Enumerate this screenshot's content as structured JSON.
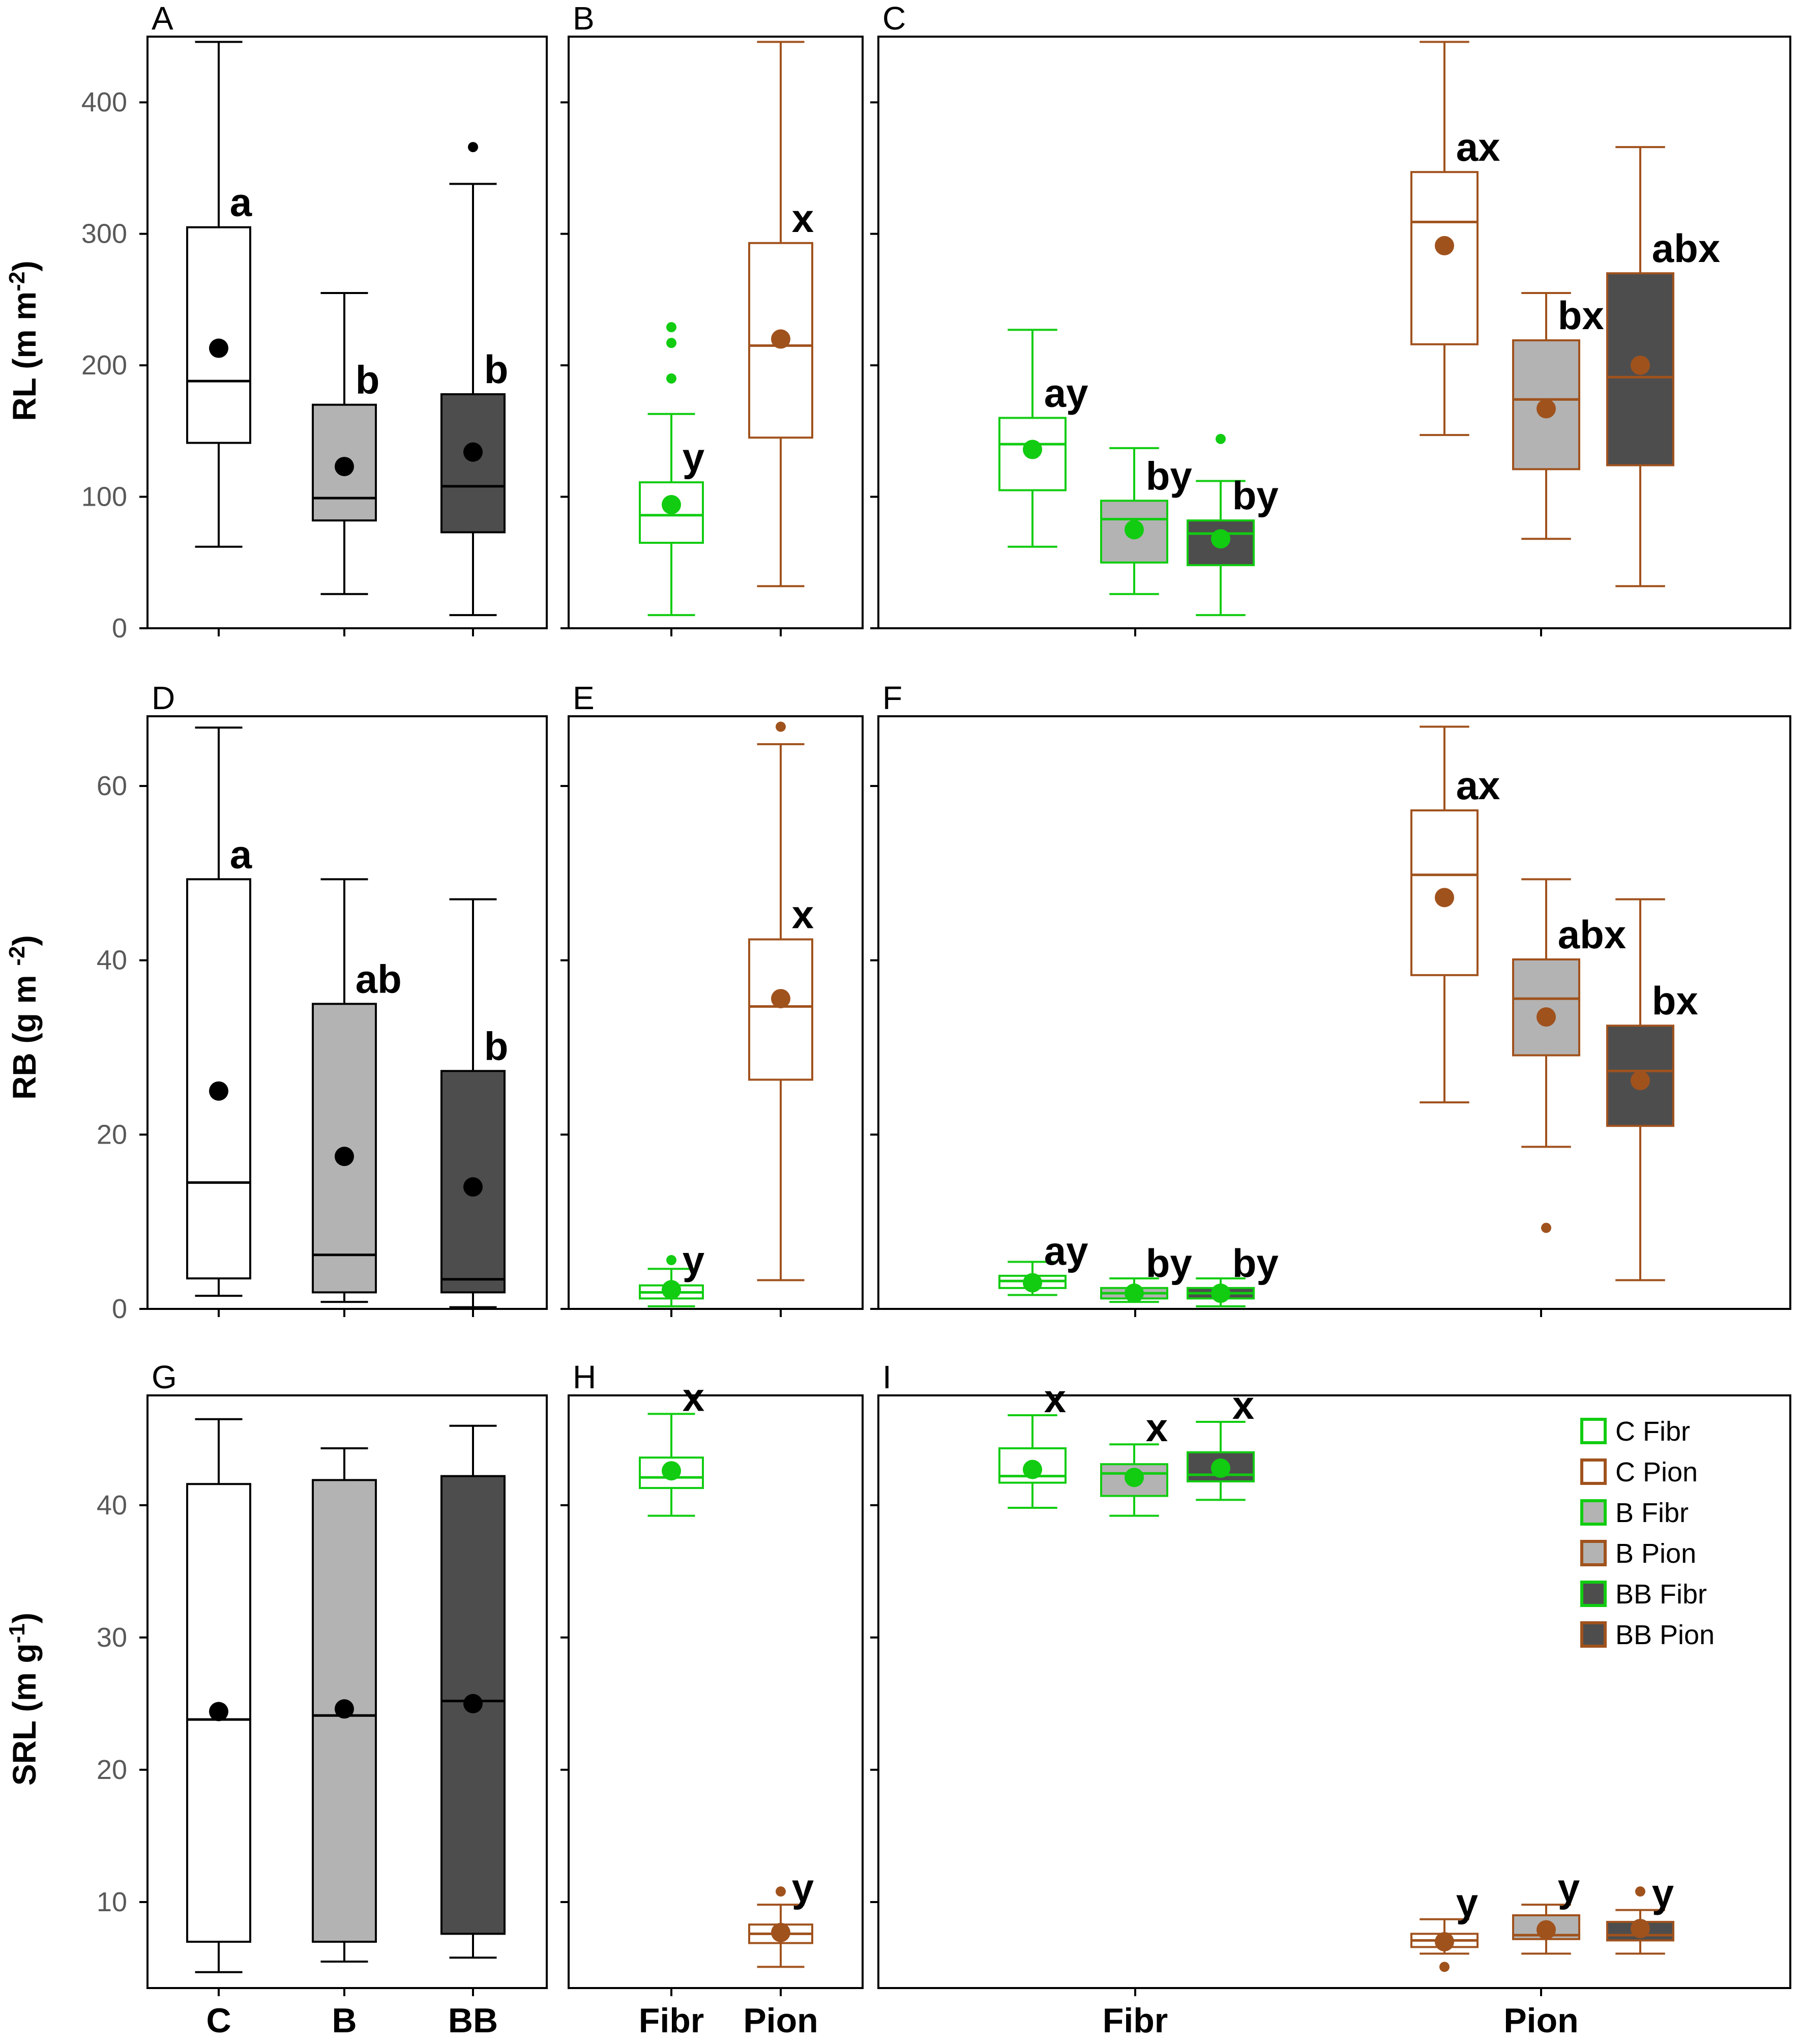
{
  "colors": {
    "fibr": "#11cc11",
    "pion": "#a0521d",
    "C": "#ffffff",
    "B": "#b3b3b3",
    "BB": "#4d4d4d",
    "black": "#000000",
    "axis": "#000000"
  },
  "chart_data": [
    {
      "id": "A",
      "label": "A",
      "type": "box",
      "ylabel": "RL (m m-2)",
      "ylim": [
        0,
        450
      ],
      "yticks": [
        "0",
        "100",
        "200",
        "300",
        "400"
      ],
      "ytick_values": [
        0,
        100,
        200,
        300,
        400
      ],
      "categories": [
        "C",
        "B",
        "BB"
      ],
      "boxes": [
        {
          "group": "C",
          "root": "all",
          "fill": "C",
          "min": 62,
          "q1": 141,
          "median": 188,
          "q3": 305,
          "max": 446,
          "mean": 213,
          "outliers": [],
          "letter": "a"
        },
        {
          "group": "B",
          "root": "all",
          "fill": "B",
          "min": 26,
          "q1": 82,
          "median": 99,
          "q3": 170,
          "max": 255,
          "mean": 123,
          "outliers": [],
          "letter": "b"
        },
        {
          "group": "BB",
          "root": "all",
          "fill": "BB",
          "min": 10,
          "q1": 73,
          "median": 108,
          "q3": 178,
          "max": 338,
          "mean": 134,
          "outliers": [
            366
          ],
          "letter": "b"
        }
      ]
    },
    {
      "id": "B",
      "label": "B",
      "type": "box",
      "ylim": [
        0,
        450
      ],
      "ytick_values": [
        0,
        100,
        200,
        300,
        400
      ],
      "categories": [
        "Fibr",
        "Pion"
      ],
      "boxes": [
        {
          "group": "Fibr",
          "root": "fibr",
          "fill": "C",
          "min": 10,
          "q1": 65,
          "median": 86,
          "q3": 111,
          "max": 163,
          "mean": 94,
          "outliers": [
            190,
            217,
            229
          ],
          "letter": "y"
        },
        {
          "group": "Pion",
          "root": "pion",
          "fill": "C",
          "min": 32,
          "q1": 145,
          "median": 215,
          "q3": 293,
          "max": 446,
          "mean": 220,
          "outliers": [],
          "letter": "x"
        }
      ]
    },
    {
      "id": "C",
      "label": "C",
      "type": "box",
      "ylim": [
        0,
        450
      ],
      "ytick_values": [
        0,
        100,
        200,
        300,
        400
      ],
      "categories": [
        "Fibr",
        "Pion"
      ],
      "boxes": [
        {
          "group": "C Fibr",
          "root": "fibr",
          "fill": "C",
          "min": 62,
          "q1": 105,
          "median": 140,
          "q3": 160,
          "max": 227,
          "mean": 136,
          "outliers": [],
          "letter": "ay"
        },
        {
          "group": "B Fibr",
          "root": "fibr",
          "fill": "B",
          "min": 26,
          "q1": 50,
          "median": 83,
          "q3": 97,
          "max": 137,
          "mean": 75,
          "outliers": [],
          "letter": "by"
        },
        {
          "group": "BB Fibr",
          "root": "fibr",
          "fill": "BB",
          "min": 10,
          "q1": 48,
          "median": 72,
          "q3": 82,
          "max": 112,
          "mean": 68,
          "outliers": [
            144
          ],
          "letter": "by"
        },
        {
          "group": "C Pion",
          "root": "pion",
          "fill": "C",
          "min": 147,
          "q1": 216,
          "median": 309,
          "q3": 347,
          "max": 446,
          "mean": 291,
          "outliers": [],
          "letter": "ax"
        },
        {
          "group": "B Pion",
          "root": "pion",
          "fill": "B",
          "min": 68,
          "q1": 121,
          "median": 174,
          "q3": 219,
          "max": 255,
          "mean": 167,
          "outliers": [],
          "letter": "bx"
        },
        {
          "group": "BB Pion",
          "root": "pion",
          "fill": "BB",
          "min": 32,
          "q1": 124,
          "median": 191,
          "q3": 270,
          "max": 366,
          "mean": 200,
          "outliers": [],
          "letter": "abx"
        }
      ]
    },
    {
      "id": "D",
      "label": "D",
      "type": "box",
      "ylabel": "RB (g m-2)",
      "ylim": [
        0,
        68
      ],
      "yticks": [
        "0",
        "20",
        "40",
        "60"
      ],
      "ytick_values": [
        0,
        20,
        40,
        60
      ],
      "categories": [
        "C",
        "B",
        "BB"
      ],
      "boxes": [
        {
          "group": "C",
          "root": "all",
          "fill": "C",
          "min": 1.5,
          "q1": 3.5,
          "median": 14.5,
          "q3": 49.3,
          "max": 66.7,
          "mean": 25,
          "outliers": [],
          "letter": "a"
        },
        {
          "group": "B",
          "root": "all",
          "fill": "B",
          "min": 0.8,
          "q1": 1.9,
          "median": 6.2,
          "q3": 35,
          "max": 49.3,
          "mean": 17.5,
          "outliers": [],
          "letter": "ab"
        },
        {
          "group": "BB",
          "root": "all",
          "fill": "BB",
          "min": 0.2,
          "q1": 1.9,
          "median": 3.4,
          "q3": 27.3,
          "max": 47,
          "mean": 14,
          "outliers": [],
          "letter": "b"
        }
      ]
    },
    {
      "id": "E",
      "label": "E",
      "type": "box",
      "ylim": [
        0,
        68
      ],
      "ytick_values": [
        0,
        20,
        40,
        60
      ],
      "categories": [
        "Fibr",
        "Pion"
      ],
      "boxes": [
        {
          "group": "Fibr",
          "root": "fibr",
          "fill": "C",
          "min": 0.3,
          "q1": 1.2,
          "median": 1.9,
          "q3": 2.7,
          "max": 4.6,
          "mean": 2.2,
          "outliers": [
            5.6
          ],
          "letter": "y"
        },
        {
          "group": "Pion",
          "root": "pion",
          "fill": "C",
          "min": 3.3,
          "q1": 26.3,
          "median": 34.7,
          "q3": 42.4,
          "max": 64.8,
          "mean": 35.6,
          "outliers": [
            66.8
          ],
          "letter": "x"
        }
      ]
    },
    {
      "id": "F",
      "label": "F",
      "type": "box",
      "ylim": [
        0,
        68
      ],
      "ytick_values": [
        0,
        20,
        40,
        60
      ],
      "categories": [
        "Fibr",
        "Pion"
      ],
      "boxes": [
        {
          "group": "C Fibr",
          "root": "fibr",
          "fill": "C",
          "min": 1.6,
          "q1": 2.4,
          "median": 3.2,
          "q3": 3.8,
          "max": 5.4,
          "mean": 3.0,
          "outliers": [],
          "letter": "ay"
        },
        {
          "group": "B Fibr",
          "root": "fibr",
          "fill": "B",
          "min": 0.8,
          "q1": 1.2,
          "median": 1.8,
          "q3": 2.4,
          "max": 3.5,
          "mean": 1.8,
          "outliers": [],
          "letter": "by"
        },
        {
          "group": "BB Fibr",
          "root": "fibr",
          "fill": "BB",
          "min": 0.3,
          "q1": 1.2,
          "median": 1.8,
          "q3": 2.4,
          "max": 3.5,
          "mean": 1.8,
          "outliers": [],
          "letter": "by"
        },
        {
          "group": "C Pion",
          "root": "pion",
          "fill": "C",
          "min": 23.7,
          "q1": 38.3,
          "median": 49.8,
          "q3": 57.2,
          "max": 66.8,
          "mean": 47.2,
          "outliers": [],
          "letter": "ax"
        },
        {
          "group": "B Pion",
          "root": "pion",
          "fill": "B",
          "min": 18.6,
          "q1": 29.1,
          "median": 35.6,
          "q3": 40.1,
          "max": 49.3,
          "mean": 33.5,
          "outliers": [
            9.3
          ],
          "letter": "abx"
        },
        {
          "group": "BB Pion",
          "root": "pion",
          "fill": "BB",
          "min": 3.3,
          "q1": 21,
          "median": 27.3,
          "q3": 32.5,
          "max": 47,
          "mean": 26.2,
          "outliers": [],
          "letter": "bx"
        }
      ]
    },
    {
      "id": "G",
      "label": "G",
      "type": "box",
      "ylabel": "SRL (m g-1)",
      "ylim": [
        3.5,
        48.3
      ],
      "yticks": [
        "10",
        "20",
        "30",
        "40"
      ],
      "ytick_values": [
        10,
        20,
        30,
        40
      ],
      "categories": [
        "C",
        "B",
        "BB"
      ],
      "boxes": [
        {
          "group": "C",
          "root": "all",
          "fill": "C",
          "min": 4.7,
          "q1": 7.0,
          "median": 23.8,
          "q3": 41.6,
          "max": 46.5,
          "mean": 24.4,
          "outliers": [],
          "letter": ""
        },
        {
          "group": "B",
          "root": "all",
          "fill": "B",
          "min": 5.5,
          "q1": 7.0,
          "median": 24.1,
          "q3": 41.9,
          "max": 44.3,
          "mean": 24.6,
          "outliers": [],
          "letter": ""
        },
        {
          "group": "BB",
          "root": "all",
          "fill": "BB",
          "min": 5.8,
          "q1": 7.6,
          "median": 25.2,
          "q3": 42.2,
          "max": 46,
          "mean": 25,
          "outliers": [],
          "letter": ""
        }
      ]
    },
    {
      "id": "H",
      "label": "H",
      "type": "box",
      "ylim": [
        3.5,
        48.3
      ],
      "ytick_values": [
        10,
        20,
        30,
        40
      ],
      "categories": [
        "Fibr",
        "Pion"
      ],
      "boxes": [
        {
          "group": "Fibr",
          "root": "fibr",
          "fill": "C",
          "min": 39.2,
          "q1": 41.3,
          "median": 42.1,
          "q3": 43.6,
          "max": 46.9,
          "mean": 42.6,
          "outliers": [],
          "letter": "x"
        },
        {
          "group": "Pion",
          "root": "pion",
          "fill": "C",
          "min": 5.1,
          "q1": 6.9,
          "median": 7.6,
          "q3": 8.3,
          "max": 9.8,
          "mean": 7.7,
          "outliers": [
            10.8
          ],
          "letter": "y"
        }
      ]
    },
    {
      "id": "I",
      "label": "I",
      "type": "box",
      "ylim": [
        3.5,
        48.3
      ],
      "ytick_values": [
        10,
        20,
        30,
        40
      ],
      "categories": [
        "Fibr",
        "Pion"
      ],
      "boxes": [
        {
          "group": "C Fibr",
          "root": "fibr",
          "fill": "C",
          "min": 39.8,
          "q1": 41.7,
          "median": 42.2,
          "q3": 44.3,
          "max": 46.8,
          "mean": 42.7,
          "outliers": [],
          "letter": "x"
        },
        {
          "group": "B Fibr",
          "root": "fibr",
          "fill": "B",
          "min": 39.2,
          "q1": 40.7,
          "median": 42.4,
          "q3": 43.1,
          "max": 44.6,
          "mean": 42.1,
          "outliers": [],
          "letter": "x"
        },
        {
          "group": "BB Fibr",
          "root": "fibr",
          "fill": "BB",
          "min": 40.4,
          "q1": 41.8,
          "median": 42.3,
          "q3": 44.0,
          "max": 46.3,
          "mean": 42.8,
          "outliers": [],
          "letter": "x"
        },
        {
          "group": "C Pion",
          "root": "pion",
          "fill": "C",
          "min": 6.1,
          "q1": 6.6,
          "median": 7.1,
          "q3": 7.6,
          "max": 8.7,
          "mean": 7.0,
          "outliers": [
            5.1
          ],
          "letter": "y"
        },
        {
          "group": "B Pion",
          "root": "pion",
          "fill": "B",
          "min": 6.1,
          "q1": 7.2,
          "median": 7.5,
          "q3": 9.0,
          "max": 9.8,
          "mean": 7.9,
          "outliers": [],
          "letter": "y"
        },
        {
          "group": "BB Pion",
          "root": "pion",
          "fill": "BB",
          "min": 6.1,
          "q1": 7.1,
          "median": 7.5,
          "q3": 8.5,
          "max": 9.4,
          "mean": 8.0,
          "outliers": [
            10.8
          ],
          "letter": "y"
        }
      ]
    }
  ],
  "legend": {
    "entries": [
      {
        "text": "C Fibr",
        "root": "fibr",
        "fill": "C"
      },
      {
        "text": "C Pion",
        "root": "pion",
        "fill": "C"
      },
      {
        "text": "B Fibr",
        "root": "fibr",
        "fill": "B"
      },
      {
        "text": "B Pion",
        "root": "pion",
        "fill": "B"
      },
      {
        "text": "BB Fibr",
        "root": "fibr",
        "fill": "BB"
      },
      {
        "text": "BB Pion",
        "root": "pion",
        "fill": "BB"
      }
    ]
  },
  "xaxis": {
    "col1": [
      "C",
      "B",
      "BB"
    ],
    "col2": [
      "Fibr",
      "Pion"
    ],
    "col3": [
      "Fibr",
      "Pion"
    ]
  },
  "ylabels": {
    "row1": {
      "main": "RL (m m",
      "sup": "-2",
      "end": ")"
    },
    "row2": {
      "main": "RB (g m ",
      "sup": "-2",
      "end": ")"
    },
    "row3": {
      "main": "SRL (m g",
      "sup": "-1",
      "end": ")"
    }
  }
}
